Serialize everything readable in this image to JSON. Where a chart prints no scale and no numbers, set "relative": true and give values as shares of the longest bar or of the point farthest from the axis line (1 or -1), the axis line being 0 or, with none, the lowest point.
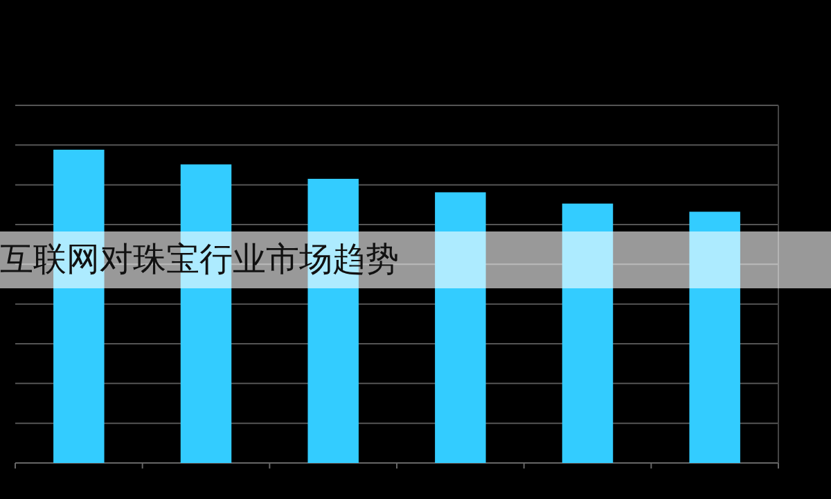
{
  "chart_data": {
    "type": "bar",
    "title": "互联网对珠宝行业市场趋势",
    "categories": [
      null,
      null,
      null,
      null,
      null,
      null
    ],
    "values": [
      1,
      0.953,
      0.907,
      0.864,
      0.828,
      0.802
    ],
    "color": "#33ccff",
    "relative": true,
    "grid": true
  }
}
